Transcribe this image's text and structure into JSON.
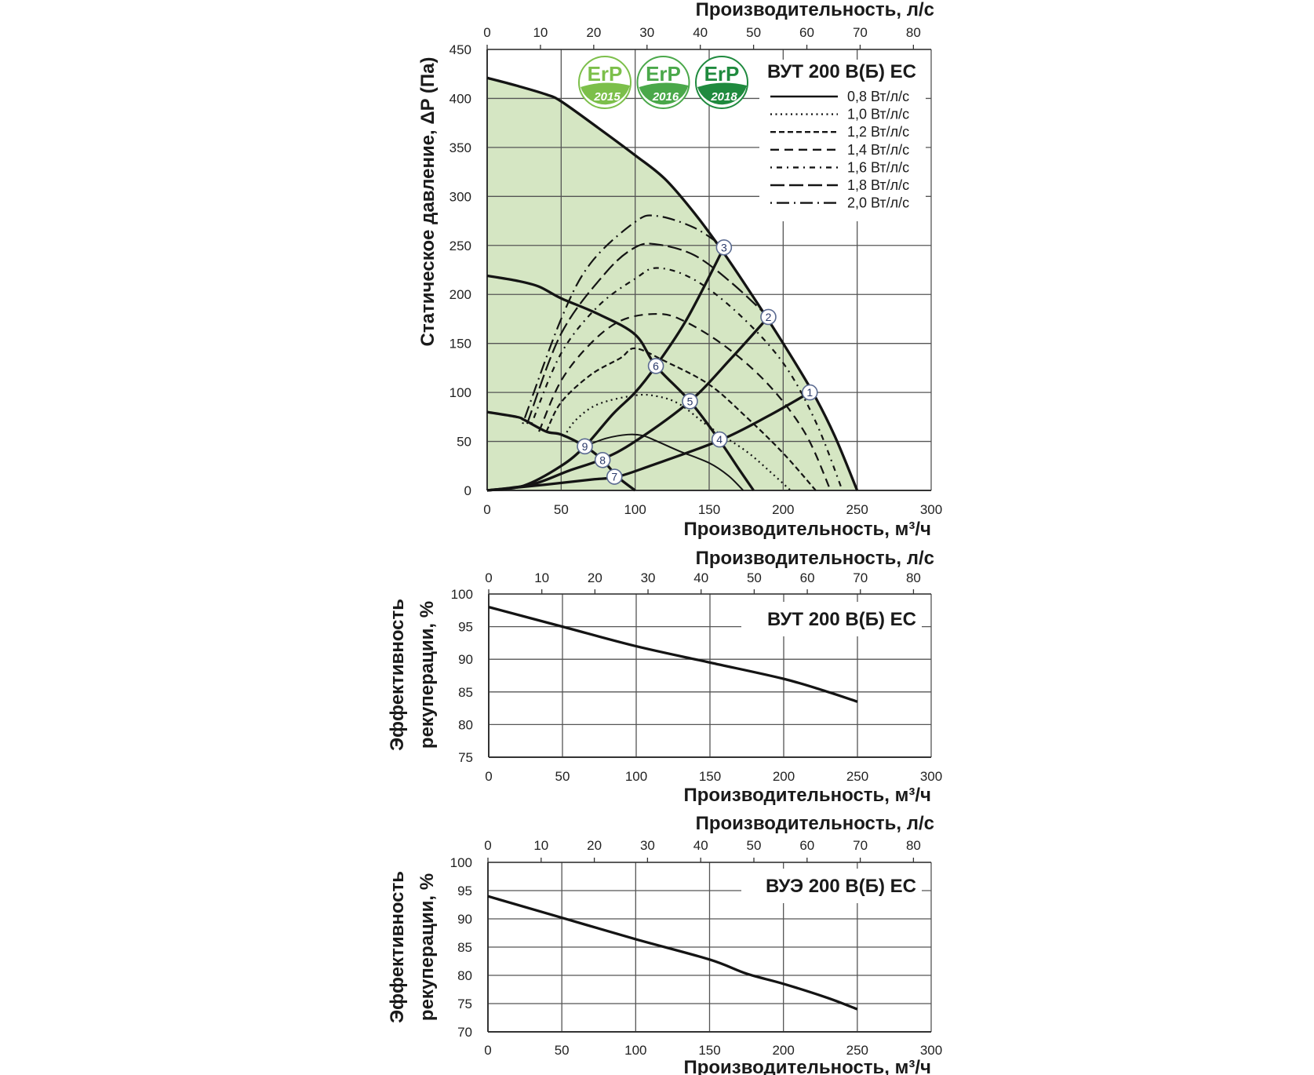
{
  "chart_data": [
    {
      "type": "line",
      "title": "ВУТ 200 В(Б) ЕС",
      "xlabel": "Производительность, м³/ч",
      "xlabel_top": "Производительность, л/с",
      "ylabel": [
        "Статическое давление, ΔP (Па)"
      ],
      "xlim": [
        0,
        300
      ],
      "ylim": [
        0,
        450
      ],
      "xticks": [
        "0",
        "50",
        "100",
        "150",
        "200",
        "250",
        "300"
      ],
      "xticks_top": [
        "0",
        "10",
        "20",
        "30",
        "40",
        "50",
        "60",
        "70",
        "80"
      ],
      "yticks": [
        "0",
        "50",
        "100",
        "150",
        "200",
        "250",
        "300",
        "350",
        "400",
        "450"
      ],
      "grid": true,
      "fill_color": "#d5e6c3",
      "badges": [
        {
          "text": "ErP",
          "year": "2015",
          "color": "#7cbf4a"
        },
        {
          "text": "ErP",
          "year": "2016",
          "color": "#4aa84a"
        },
        {
          "text": "ErP",
          "year": "2018",
          "color": "#1f8a3e"
        }
      ],
      "legend": [
        {
          "label": "0,8 Вт/л/с",
          "style": "solid"
        },
        {
          "label": "1,0 Вт/л/с",
          "style": "dotted"
        },
        {
          "label": "1,2 Вт/л/с",
          "style": "dash-short"
        },
        {
          "label": "1,4 Вт/л/с",
          "style": "dash"
        },
        {
          "label": "1,6 Вт/л/с",
          "style": "dot-dash-short"
        },
        {
          "label": "1,8 Вт/л/с",
          "style": "dash-long"
        },
        {
          "label": "2,0 Вт/л/с",
          "style": "dash-dot"
        }
      ],
      "series": [
        {
          "name": "max-speed",
          "style": "solid",
          "fill": true,
          "points": [
            [
              0,
              421
            ],
            [
              20,
              413
            ],
            [
              40,
              404
            ],
            [
              50,
              397
            ],
            [
              75,
              370
            ],
            [
              100,
              342
            ],
            [
              120,
              318
            ],
            [
              140,
              283
            ],
            [
              160,
              242
            ],
            [
              180,
              197
            ],
            [
              200,
              150
            ],
            [
              220,
              100
            ],
            [
              235,
              55
            ],
            [
              250,
              0
            ]
          ]
        },
        {
          "name": "mid-speed",
          "style": "solid",
          "points": [
            [
              0,
              219
            ],
            [
              20,
              214
            ],
            [
              35,
              208
            ],
            [
              50,
              196
            ],
            [
              75,
              180
            ],
            [
              100,
              159
            ],
            [
              114,
              127
            ],
            [
              137,
              91
            ],
            [
              157,
              51
            ],
            [
              170,
              22
            ],
            [
              180,
              0
            ]
          ]
        },
        {
          "name": "low-speed",
          "style": "solid",
          "points": [
            [
              0,
              80
            ],
            [
              20,
              75
            ],
            [
              25,
              72
            ],
            [
              40,
              60
            ],
            [
              50,
              57
            ],
            [
              66,
              45
            ],
            [
              78,
              31
            ],
            [
              88,
              14
            ],
            [
              100,
              0
            ]
          ]
        },
        {
          "name": "low-speed-2",
          "style": "thin",
          "points": [
            [
              66,
              45
            ],
            [
              80,
              53
            ],
            [
              95,
              57
            ],
            [
              105,
              56
            ],
            [
              115,
              50
            ],
            [
              130,
              40
            ],
            [
              150,
              28
            ],
            [
              163,
              15
            ],
            [
              173,
              0
            ]
          ]
        },
        {
          "name": "system-3",
          "style": "solid",
          "points": [
            [
              0,
              0
            ],
            [
              25,
              5
            ],
            [
              50,
              25
            ],
            [
              66,
              45
            ],
            [
              85,
              78
            ],
            [
              100,
              100
            ],
            [
              114,
              127
            ],
            [
              135,
              175
            ],
            [
              160,
              248
            ]
          ]
        },
        {
          "name": "system-2",
          "style": "solid",
          "points": [
            [
              0,
              0
            ],
            [
              30,
              6
            ],
            [
              55,
              20
            ],
            [
              78,
              32
            ],
            [
              100,
              50
            ],
            [
              137,
              91
            ],
            [
              165,
              135
            ],
            [
              190,
              177
            ]
          ]
        },
        {
          "name": "system-1",
          "style": "solid",
          "points": [
            [
              0,
              0
            ],
            [
              40,
              6
            ],
            [
              70,
              11
            ],
            [
              88,
              14
            ],
            [
              110,
              25
            ],
            [
              157,
              51
            ],
            [
              190,
              76
            ],
            [
              218,
              100
            ]
          ]
        },
        {
          "name": "1,0 Вт/л/с",
          "style": "dotted",
          "points": [
            [
              52,
              55
            ],
            [
              60,
              72
            ],
            [
              75,
              88
            ],
            [
              100,
              97
            ],
            [
              115,
              96
            ],
            [
              130,
              88
            ],
            [
              150,
              65
            ],
            [
              175,
              40
            ],
            [
              192,
              18
            ],
            [
              205,
              0
            ]
          ]
        },
        {
          "name": "1,2 Вт/л/с",
          "style": "dash-short",
          "points": [
            [
              40,
              60
            ],
            [
              50,
              90
            ],
            [
              70,
              118
            ],
            [
              90,
              135
            ],
            [
              100,
              145
            ],
            [
              120,
              132
            ],
            [
              150,
              108
            ],
            [
              175,
              75
            ],
            [
              200,
              38
            ],
            [
              222,
              0
            ]
          ]
        },
        {
          "name": "1,4 Вт/л/с",
          "style": "dash",
          "points": [
            [
              35,
              60
            ],
            [
              50,
              112
            ],
            [
              70,
              150
            ],
            [
              90,
              173
            ],
            [
              112,
              180
            ],
            [
              130,
              175
            ],
            [
              160,
              148
            ],
            [
              190,
              108
            ],
            [
              215,
              58
            ],
            [
              232,
              0
            ]
          ]
        },
        {
          "name": "1,6 Вт/л/с",
          "style": "dot-dash-short",
          "points": [
            [
              30,
              68
            ],
            [
              50,
              140
            ],
            [
              75,
              188
            ],
            [
              100,
              216
            ],
            [
              115,
              227
            ],
            [
              140,
              215
            ],
            [
              170,
              180
            ],
            [
              200,
              130
            ],
            [
              222,
              70
            ],
            [
              240,
              0
            ]
          ]
        },
        {
          "name": "1,8 Вт/л/с",
          "style": "dash-long",
          "points": [
            [
              27,
              68
            ],
            [
              50,
              160
            ],
            [
              80,
              222
            ],
            [
              100,
              248
            ],
            [
              115,
              251
            ],
            [
              140,
              240
            ],
            [
              165,
              212
            ],
            [
              190,
              177
            ]
          ]
        },
        {
          "name": "2,0 Вт/л/с",
          "style": "dash-dot",
          "points": [
            [
              24,
              68
            ],
            [
              50,
              175
            ],
            [
              70,
              232
            ],
            [
              100,
              274
            ],
            [
              115,
              280
            ],
            [
              140,
              268
            ],
            [
              160,
              248
            ]
          ]
        }
      ],
      "markers": [
        {
          "label": "1",
          "x": 218,
          "y": 100
        },
        {
          "label": "2",
          "x": 190,
          "y": 177
        },
        {
          "label": "3",
          "x": 160,
          "y": 248
        },
        {
          "label": "4",
          "x": 157,
          "y": 52
        },
        {
          "label": "5",
          "x": 137,
          "y": 91
        },
        {
          "label": "6",
          "x": 114,
          "y": 127
        },
        {
          "label": "7",
          "x": 86,
          "y": 14
        },
        {
          "label": "8",
          "x": 78,
          "y": 31
        },
        {
          "label": "9",
          "x": 66,
          "y": 45
        }
      ]
    },
    {
      "type": "line",
      "title": "ВУТ 200 В(Б) ЕС",
      "xlabel": "Производительность, м³/ч",
      "xlabel_top": "Производительность, л/с",
      "ylabel": [
        "Эффективность",
        "рекуперации, %"
      ],
      "xlim": [
        0,
        300
      ],
      "ylim": [
        75,
        100
      ],
      "xticks": [
        "0",
        "50",
        "100",
        "150",
        "200",
        "250",
        "300"
      ],
      "xticks_top": [
        "0",
        "10",
        "20",
        "30",
        "40",
        "50",
        "60",
        "70",
        "80"
      ],
      "yticks": [
        "75",
        "80",
        "85",
        "90",
        "95",
        "100"
      ],
      "grid": true,
      "series": [
        {
          "name": "efficiency",
          "style": "solid",
          "points": [
            [
              0,
              98
            ],
            [
              50,
              95
            ],
            [
              100,
              92
            ],
            [
              150,
              89.5
            ],
            [
              200,
              87
            ],
            [
              230,
              85
            ],
            [
              250,
              83.5
            ]
          ]
        }
      ]
    },
    {
      "type": "line",
      "title": "ВУЭ 200 В(Б) ЕС",
      "xlabel": "Производительность, м³/ч",
      "xlabel_top": "Производительность, л/с",
      "ylabel": [
        "Эффективность",
        "рекуперации, %"
      ],
      "xlim": [
        0,
        300
      ],
      "ylim": [
        70,
        100
      ],
      "xticks": [
        "0",
        "50",
        "100",
        "150",
        "200",
        "250",
        "300"
      ],
      "xticks_top": [
        "0",
        "10",
        "20",
        "30",
        "40",
        "50",
        "60",
        "70",
        "80"
      ],
      "yticks": [
        "70",
        "75",
        "80",
        "85",
        "90",
        "95",
        "100"
      ],
      "grid": true,
      "series": [
        {
          "name": "efficiency",
          "style": "solid",
          "points": [
            [
              0,
              94
            ],
            [
              50,
              90.2
            ],
            [
              100,
              86.4
            ],
            [
              150,
              82.8
            ],
            [
              175,
              80.3
            ],
            [
              200,
              78.5
            ],
            [
              230,
              76
            ],
            [
              250,
              74
            ]
          ]
        }
      ]
    }
  ]
}
